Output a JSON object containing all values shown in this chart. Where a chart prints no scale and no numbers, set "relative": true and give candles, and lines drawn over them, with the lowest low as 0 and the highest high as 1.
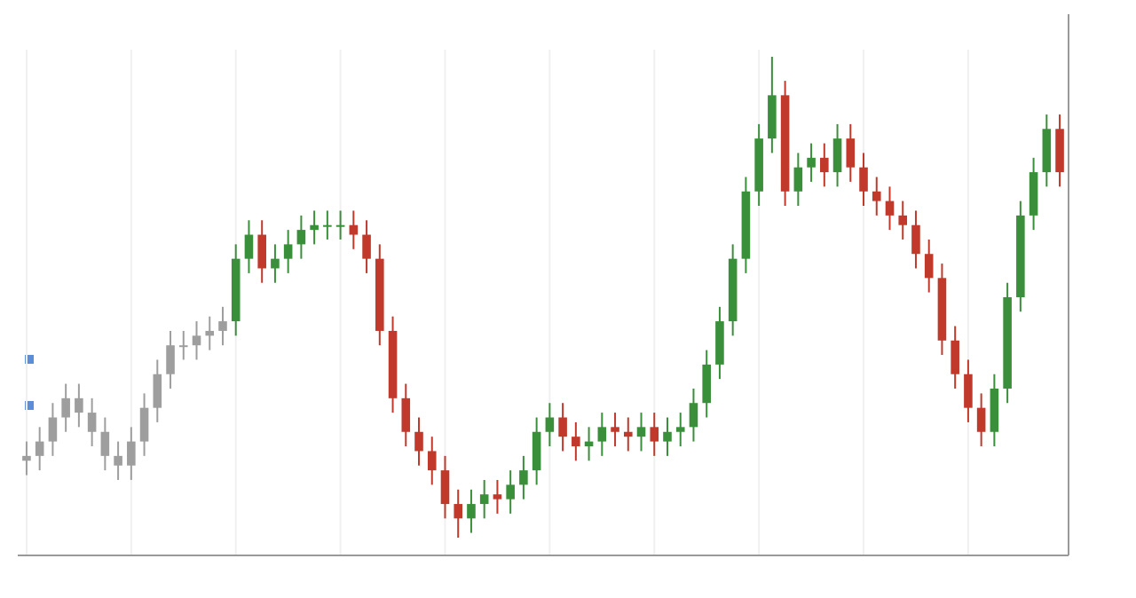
{
  "chart_data": {
    "type": "candlestick",
    "relative": true,
    "grid": "x",
    "categories": [
      null,
      null,
      null,
      null,
      null,
      null,
      null,
      null,
      null,
      null,
      null,
      null,
      null,
      null,
      null,
      null,
      null,
      null,
      null,
      null,
      null,
      null,
      null,
      null,
      null,
      null,
      null,
      null,
      null,
      null,
      null,
      null,
      null,
      null,
      null,
      null,
      null,
      null,
      null,
      null,
      null,
      null,
      null,
      null,
      null,
      null,
      null,
      null,
      null,
      null,
      null,
      null,
      null,
      null,
      null,
      null,
      null,
      null,
      null,
      null,
      null,
      null,
      null,
      null,
      null,
      null,
      null,
      null,
      null,
      null,
      null,
      null,
      null,
      null,
      null,
      null,
      null,
      null,
      null,
      null
    ],
    "ohlc": [
      [
        0.16,
        0.2,
        0.13,
        0.17
      ],
      [
        0.17,
        0.23,
        0.14,
        0.2
      ],
      [
        0.2,
        0.28,
        0.17,
        0.25
      ],
      [
        0.25,
        0.32,
        0.22,
        0.29
      ],
      [
        0.29,
        0.32,
        0.23,
        0.26
      ],
      [
        0.26,
        0.29,
        0.19,
        0.22
      ],
      [
        0.22,
        0.25,
        0.14,
        0.17
      ],
      [
        0.17,
        0.2,
        0.12,
        0.15
      ],
      [
        0.15,
        0.23,
        0.12,
        0.2
      ],
      [
        0.2,
        0.3,
        0.17,
        0.27
      ],
      [
        0.27,
        0.37,
        0.24,
        0.34
      ],
      [
        0.34,
        0.43,
        0.31,
        0.4
      ],
      [
        0.4,
        0.43,
        0.37,
        0.4
      ],
      [
        0.4,
        0.45,
        0.37,
        0.42
      ],
      [
        0.42,
        0.46,
        0.39,
        0.43
      ],
      [
        0.43,
        0.48,
        0.4,
        0.45
      ],
      [
        0.45,
        0.61,
        0.42,
        0.58
      ],
      [
        0.58,
        0.66,
        0.55,
        0.63
      ],
      [
        0.63,
        0.66,
        0.53,
        0.56
      ],
      [
        0.56,
        0.61,
        0.53,
        0.58
      ],
      [
        0.58,
        0.64,
        0.55,
        0.61
      ],
      [
        0.61,
        0.67,
        0.58,
        0.64
      ],
      [
        0.64,
        0.68,
        0.61,
        0.65
      ],
      [
        0.65,
        0.68,
        0.62,
        0.65
      ],
      [
        0.65,
        0.68,
        0.62,
        0.65
      ],
      [
        0.65,
        0.68,
        0.6,
        0.63
      ],
      [
        0.63,
        0.66,
        0.55,
        0.58
      ],
      [
        0.58,
        0.61,
        0.4,
        0.43
      ],
      [
        0.43,
        0.46,
        0.26,
        0.29
      ],
      [
        0.29,
        0.32,
        0.19,
        0.22
      ],
      [
        0.22,
        0.25,
        0.15,
        0.18
      ],
      [
        0.18,
        0.21,
        0.11,
        0.14
      ],
      [
        0.14,
        0.17,
        0.04,
        0.07
      ],
      [
        0.07,
        0.1,
        0,
        0.04
      ],
      [
        0.04,
        0.1,
        0.01,
        0.07
      ],
      [
        0.07,
        0.12,
        0.04,
        0.09
      ],
      [
        0.09,
        0.12,
        0.05,
        0.08
      ],
      [
        0.08,
        0.14,
        0.05,
        0.11
      ],
      [
        0.11,
        0.17,
        0.08,
        0.14
      ],
      [
        0.14,
        0.25,
        0.11,
        0.22
      ],
      [
        0.22,
        0.28,
        0.19,
        0.25
      ],
      [
        0.25,
        0.28,
        0.18,
        0.21
      ],
      [
        0.21,
        0.24,
        0.16,
        0.19
      ],
      [
        0.19,
        0.23,
        0.16,
        0.2
      ],
      [
        0.2,
        0.26,
        0.17,
        0.23
      ],
      [
        0.23,
        0.26,
        0.19,
        0.22
      ],
      [
        0.22,
        0.25,
        0.18,
        0.21
      ],
      [
        0.21,
        0.26,
        0.18,
        0.23
      ],
      [
        0.23,
        0.26,
        0.17,
        0.2
      ],
      [
        0.2,
        0.25,
        0.17,
        0.22
      ],
      [
        0.22,
        0.26,
        0.19,
        0.23
      ],
      [
        0.23,
        0.31,
        0.2,
        0.28
      ],
      [
        0.28,
        0.39,
        0.25,
        0.36
      ],
      [
        0.36,
        0.48,
        0.33,
        0.45
      ],
      [
        0.45,
        0.61,
        0.42,
        0.58
      ],
      [
        0.58,
        0.75,
        0.55,
        0.72
      ],
      [
        0.72,
        0.86,
        0.69,
        0.83
      ],
      [
        0.83,
        1,
        0.8,
        0.92
      ],
      [
        0.92,
        0.95,
        0.69,
        0.72
      ],
      [
        0.72,
        0.8,
        0.69,
        0.77
      ],
      [
        0.77,
        0.82,
        0.74,
        0.79
      ],
      [
        0.79,
        0.82,
        0.73,
        0.76
      ],
      [
        0.76,
        0.86,
        0.73,
        0.83
      ],
      [
        0.83,
        0.86,
        0.74,
        0.77
      ],
      [
        0.77,
        0.8,
        0.69,
        0.72
      ],
      [
        0.72,
        0.75,
        0.67,
        0.7
      ],
      [
        0.7,
        0.73,
        0.64,
        0.67
      ],
      [
        0.67,
        0.7,
        0.62,
        0.65
      ],
      [
        0.65,
        0.68,
        0.56,
        0.59
      ],
      [
        0.59,
        0.62,
        0.51,
        0.54
      ],
      [
        0.54,
        0.57,
        0.38,
        0.41
      ],
      [
        0.41,
        0.44,
        0.31,
        0.34
      ],
      [
        0.34,
        0.37,
        0.24,
        0.27
      ],
      [
        0.27,
        0.3,
        0.19,
        0.22
      ],
      [
        0.22,
        0.34,
        0.19,
        0.31
      ],
      [
        0.31,
        0.53,
        0.28,
        0.5
      ],
      [
        0.5,
        0.7,
        0.47,
        0.67
      ],
      [
        0.67,
        0.79,
        0.64,
        0.76
      ],
      [
        0.76,
        0.88,
        0.73,
        0.85
      ],
      [
        0.85,
        0.88,
        0.73,
        0.76
      ]
    ],
    "colors": [
      "#9e9e9e",
      "#9e9e9e",
      "#9e9e9e",
      "#9e9e9e",
      "#9e9e9e",
      "#9e9e9e",
      "#9e9e9e",
      "#9e9e9e",
      "#9e9e9e",
      "#9e9e9e",
      "#9e9e9e",
      "#9e9e9e",
      "#9e9e9e",
      "#9e9e9e",
      "#9e9e9e",
      "#9e9e9e",
      "#3a8f3a",
      "#3a8f3a",
      "#c0392b",
      "#3a8f3a",
      "#3a8f3a",
      "#3a8f3a",
      "#3a8f3a",
      "#3a8f3a",
      "#3a8f3a",
      "#c0392b",
      "#c0392b",
      "#c0392b",
      "#c0392b",
      "#c0392b",
      "#c0392b",
      "#c0392b",
      "#c0392b",
      "#c0392b",
      "#3a8f3a",
      "#3a8f3a",
      "#c0392b",
      "#3a8f3a",
      "#3a8f3a",
      "#3a8f3a",
      "#3a8f3a",
      "#c0392b",
      "#c0392b",
      "#3a8f3a",
      "#3a8f3a",
      "#c0392b",
      "#c0392b",
      "#3a8f3a",
      "#c0392b",
      "#3a8f3a",
      "#3a8f3a",
      "#3a8f3a",
      "#3a8f3a",
      "#3a8f3a",
      "#3a8f3a",
      "#3a8f3a",
      "#3a8f3a",
      "#3a8f3a",
      "#c0392b",
      "#3a8f3a",
      "#3a8f3a",
      "#c0392b",
      "#3a8f3a",
      "#c0392b",
      "#c0392b",
      "#c0392b",
      "#c0392b",
      "#c0392b",
      "#c0392b",
      "#c0392b",
      "#c0392b",
      "#c0392b",
      "#c0392b",
      "#c0392b",
      "#3a8f3a",
      "#3a8f3a",
      "#3a8f3a",
      "#3a8f3a",
      "#3a8f3a",
      "#c0392b"
    ]
  }
}
